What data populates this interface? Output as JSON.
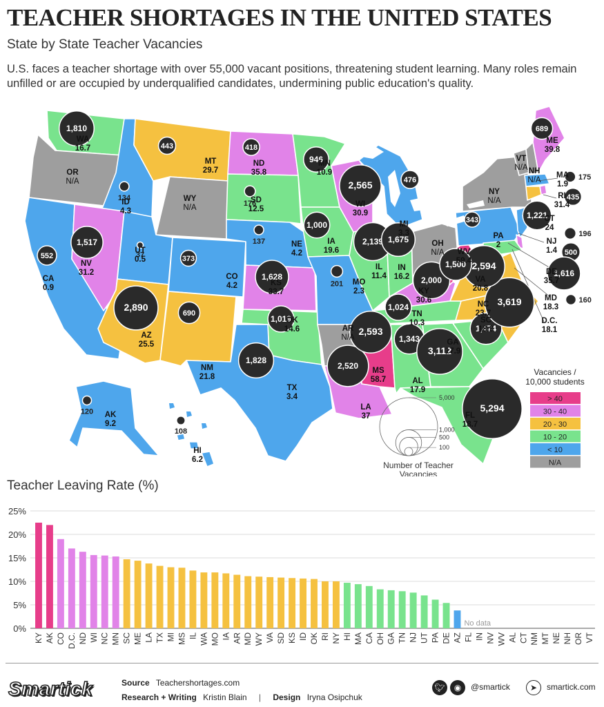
{
  "title": "TEACHER SHORTAGES IN THE UNITED STATES",
  "subtitle": "State by State Teacher Vacancies",
  "intro": "U.S. faces a teacher shortage with over 55,000 vacant positions, threatening student learning. Many roles remain unfilled or are occupied by underqualified candidates, undermining public education's quality.",
  "colors": {
    "gt40": "#e73d8a",
    "30to40": "#e183e8",
    "20to30": "#f5c140",
    "10to20": "#79e38d",
    "lt10": "#4ea6ec",
    "na": "#9e9e9e",
    "bubble": "#2a2a2a"
  },
  "legend": {
    "title": "Vacancies / 10,000 students",
    "items": [
      {
        "label": "> 40",
        "color": "#e73d8a"
      },
      {
        "label": "30 - 40",
        "color": "#e183e8"
      },
      {
        "label": "20 - 30",
        "color": "#f5c140"
      },
      {
        "label": "10 - 20",
        "color": "#79e38d"
      },
      {
        "label": "< 10",
        "color": "#4ea6ec"
      },
      {
        "label": "N/A",
        "color": "#9e9e9e"
      }
    ],
    "size_title": "Number of Teacher Vacancies",
    "size_values": [
      5000,
      1000,
      500,
      100
    ],
    "size_labels": [
      "5,000",
      "1,000",
      "500",
      "100"
    ]
  },
  "chart_data": [
    {
      "type": "map",
      "title": "State by State Teacher Vacancies",
      "value_label": "Vacancies / 10,000 students",
      "size_label": "Number of Teacher Vacancies",
      "states": [
        {
          "code": "WA",
          "rate": "16.7",
          "vacancies": "1,810",
          "cat": "10to20"
        },
        {
          "code": "OR",
          "rate": "N/A",
          "vacancies": "",
          "cat": "na"
        },
        {
          "code": "CA",
          "rate": "0.9",
          "vacancies": "552",
          "cat": "lt10"
        },
        {
          "code": "ID",
          "rate": "4.3",
          "vacancies": "134",
          "cat": "lt10"
        },
        {
          "code": "NV",
          "rate": "31.2",
          "vacancies": "1,517",
          "cat": "30to40"
        },
        {
          "code": "MT",
          "rate": "29.7",
          "vacancies": "443",
          "cat": "20to30"
        },
        {
          "code": "WY",
          "rate": "N/A",
          "vacancies": "",
          "cat": "na"
        },
        {
          "code": "UT",
          "rate": "0.5",
          "vacancies": "37",
          "cat": "lt10"
        },
        {
          "code": "AZ",
          "rate": "25.5",
          "vacancies": "2,890",
          "cat": "20to30"
        },
        {
          "code": "CO",
          "rate": "4.2",
          "vacancies": "373",
          "cat": "lt10"
        },
        {
          "code": "NM",
          "rate": "21.8",
          "vacancies": "690",
          "cat": "20to30"
        },
        {
          "code": "ND",
          "rate": "35.8",
          "vacancies": "418",
          "cat": "30to40"
        },
        {
          "code": "SD",
          "rate": "12.5",
          "vacancies": "176",
          "cat": "10to20"
        },
        {
          "code": "NE",
          "rate": "4.2",
          "vacancies": "137",
          "cat": "lt10"
        },
        {
          "code": "KS",
          "rate": "33.7",
          "vacancies": "1,628",
          "cat": "30to40"
        },
        {
          "code": "OK",
          "rate": "14.6",
          "vacancies": "1,019",
          "cat": "10to20"
        },
        {
          "code": "TX",
          "rate": "3.4",
          "vacancies": "1,828",
          "cat": "lt10"
        },
        {
          "code": "MN",
          "rate": "10.9",
          "vacancies": "946",
          "cat": "10to20"
        },
        {
          "code": "IA",
          "rate": "19.6",
          "vacancies": "1,000",
          "cat": "10to20"
        },
        {
          "code": "MO",
          "rate": "2.3",
          "vacancies": "201",
          "cat": "lt10"
        },
        {
          "code": "AR",
          "rate": "N/A",
          "vacancies": "",
          "cat": "na"
        },
        {
          "code": "LA",
          "rate": "37",
          "vacancies": "2,520",
          "cat": "30to40"
        },
        {
          "code": "WI",
          "rate": "30.9",
          "vacancies": "2,565",
          "cat": "30to40"
        },
        {
          "code": "IL",
          "rate": "11.4",
          "vacancies": "2,139",
          "cat": "10to20"
        },
        {
          "code": "MS",
          "rate": "58.7",
          "vacancies": "2,593",
          "cat": "gt40"
        },
        {
          "code": "MI",
          "rate": "3.3",
          "vacancies": "476",
          "cat": "lt10"
        },
        {
          "code": "IN",
          "rate": "16.2",
          "vacancies": "1,675",
          "cat": "10to20"
        },
        {
          "code": "KY",
          "rate": "30.6",
          "vacancies": "2,000",
          "cat": "30to40"
        },
        {
          "code": "TN",
          "rate": "10.3",
          "vacancies": "1,024",
          "cat": "10to20"
        },
        {
          "code": "AL",
          "rate": "17.9",
          "vacancies": "1,343",
          "cat": "10to20"
        },
        {
          "code": "OH",
          "rate": "N/A",
          "vacancies": "",
          "cat": "na"
        },
        {
          "code": "GA",
          "rate": "17.9",
          "vacancies": "3,112",
          "cat": "10to20"
        },
        {
          "code": "FL",
          "rate": "18.7",
          "vacancies": "5,294",
          "cat": "10to20"
        },
        {
          "code": "SC",
          "rate": "18.9",
          "vacancies": "1,474",
          "cat": "10to20"
        },
        {
          "code": "NC",
          "rate": "23.7",
          "vacancies": "3,619",
          "cat": "20to30"
        },
        {
          "code": "VA",
          "rate": "20.8",
          "vacancies": "2,594",
          "cat": "20to30"
        },
        {
          "code": "WV",
          "rate": "59.4",
          "vacancies": "1,500",
          "cat": "gt40"
        },
        {
          "code": "PA",
          "rate": "2",
          "vacancies": "343",
          "cat": "lt10"
        },
        {
          "code": "NY",
          "rate": "N/A",
          "vacancies": "",
          "cat": "na"
        },
        {
          "code": "VT",
          "rate": "N/A",
          "vacancies": "",
          "cat": "na"
        },
        {
          "code": "NH",
          "rate": "N/A",
          "vacancies": "",
          "cat": "na"
        },
        {
          "code": "ME",
          "rate": "39.8",
          "vacancies": "689",
          "cat": "30to40"
        },
        {
          "code": "MA",
          "rate": "1.9",
          "vacancies": "175",
          "cat": "lt10"
        },
        {
          "code": "RI",
          "rate": "31.4",
          "vacancies": "435",
          "cat": "30to40"
        },
        {
          "code": "CT",
          "rate": "24",
          "vacancies": "1,221",
          "cat": "20to30"
        },
        {
          "code": "NJ",
          "rate": "1.4",
          "vacancies": "196",
          "cat": "lt10"
        },
        {
          "code": "DE",
          "rate": "35.7",
          "vacancies": "500",
          "cat": "30to40"
        },
        {
          "code": "MD",
          "rate": "18.3",
          "vacancies": "1,616",
          "cat": "10to20"
        },
        {
          "code": "D.C.",
          "rate": "18.1",
          "vacancies": "160",
          "cat": "10to20"
        },
        {
          "code": "AK",
          "rate": "9.2",
          "vacancies": "120",
          "cat": "lt10"
        },
        {
          "code": "HI",
          "rate": "6.2",
          "vacancies": "108",
          "cat": "lt10"
        }
      ]
    },
    {
      "type": "bar",
      "title": "Teacher Leaving Rate (%)",
      "ylim": [
        0,
        25
      ],
      "yticks": [
        "0%",
        "5%",
        "10%",
        "15%",
        "20%",
        "25%"
      ],
      "grid": true,
      "no_data_label": "No data",
      "categories": [
        "KY",
        "AK",
        "CO",
        "D.C.",
        "ND",
        "WI",
        "NC",
        "MN",
        "SC",
        "ME",
        "LA",
        "TX",
        "MI",
        "MS",
        "IL",
        "WA",
        "MO",
        "IA",
        "AR",
        "MD",
        "WY",
        "VA",
        "SD",
        "KS",
        "ID",
        "OK",
        "RI",
        "NY",
        "HI",
        "MA",
        "CA",
        "OH",
        "GA",
        "TN",
        "NJ",
        "UT",
        "PA",
        "DE",
        "AZ",
        "FL",
        "IN",
        "NV",
        "WV",
        "AL",
        "CT",
        "NM",
        "MT",
        "NE",
        "NH",
        "OR",
        "VT"
      ],
      "values": [
        22.5,
        22.0,
        19.0,
        17.0,
        16.3,
        15.6,
        15.5,
        15.3,
        14.7,
        14.4,
        13.8,
        13.3,
        13.0,
        12.9,
        12.3,
        11.9,
        11.9,
        11.7,
        11.4,
        11.1,
        11.0,
        10.9,
        10.8,
        10.7,
        10.6,
        10.5,
        10.0,
        10.0,
        9.7,
        9.4,
        9.0,
        8.3,
        8.1,
        7.9,
        7.6,
        7.0,
        6.1,
        5.4,
        3.8,
        null,
        null,
        null,
        null,
        null,
        null,
        null,
        null,
        null,
        null,
        null,
        null
      ]
    }
  ],
  "footer": {
    "source_label": "Source",
    "source": "Teachershortages.com",
    "research_label": "Research + Writing",
    "research": "Kristin Blain",
    "design_label": "Design",
    "design": "Iryna Osipchuk",
    "social": "@smartick",
    "website": "smartick.com",
    "logo": "Smartick",
    "separator": "|"
  }
}
